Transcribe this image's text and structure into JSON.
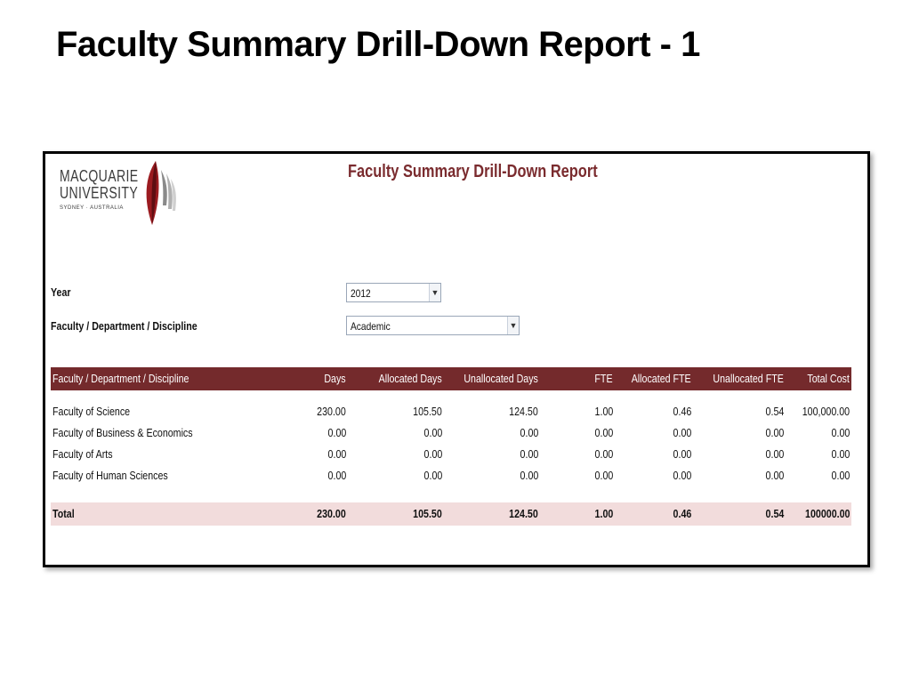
{
  "slide": {
    "title": "Faculty Summary Drill-Down Report - 1"
  },
  "logo": {
    "line1": "MACQUARIE",
    "line2": "UNIVERSITY",
    "line3": "SYDNEY · AUSTRALIA"
  },
  "report": {
    "title": "Faculty  Summary Drill-Down Report"
  },
  "filters": {
    "year": {
      "label": "Year",
      "value": "2012"
    },
    "faculty": {
      "label": "Faculty / Department / Discipline",
      "value": "Academic"
    }
  },
  "table": {
    "headers": [
      "Faculty / Department / Discipline",
      "Days",
      "Allocated Days",
      "Unallocated Days",
      "FTE",
      "Allocated FTE",
      "Unallocated FTE",
      "Total Cost"
    ],
    "rows": [
      [
        "Faculty of Science",
        "230.00",
        "105.50",
        "124.50",
        "1.00",
        "0.46",
        "0.54",
        "100,000.00"
      ],
      [
        "Faculty of Business & Economics",
        "0.00",
        "0.00",
        "0.00",
        "0.00",
        "0.00",
        "0.00",
        "0.00"
      ],
      [
        "Faculty of Arts",
        "0.00",
        "0.00",
        "0.00",
        "0.00",
        "0.00",
        "0.00",
        "0.00"
      ],
      [
        "Faculty of Human Sciences",
        "0.00",
        "0.00",
        "0.00",
        "0.00",
        "0.00",
        "0.00",
        "0.00"
      ]
    ],
    "total": [
      "Total",
      "230.00",
      "105.50",
      "124.50",
      "1.00",
      "0.46",
      "0.54",
      "100000.00"
    ]
  },
  "colors": {
    "header_bg": "#742a2c",
    "title_red": "#7a2b2e",
    "total_bg": "#f2dcdc"
  }
}
